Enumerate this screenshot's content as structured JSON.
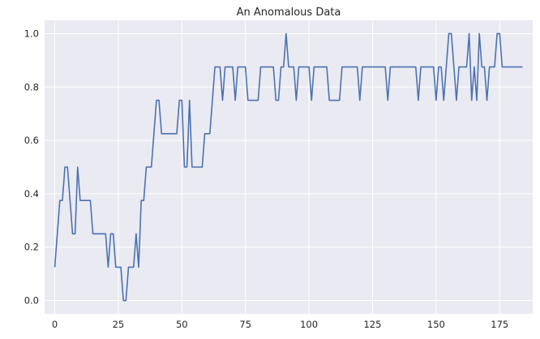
{
  "chart_data": {
    "type": "line",
    "title": "An Anomalous Data",
    "xlabel": "",
    "ylabel": "",
    "xlim": [
      -4,
      188
    ],
    "ylim": [
      -0.05,
      1.05
    ],
    "xticks": [
      0,
      25,
      50,
      75,
      100,
      125,
      150,
      175
    ],
    "yticks": [
      0.0,
      0.2,
      0.4,
      0.6,
      0.8,
      1.0
    ],
    "xtick_labels": [
      "0",
      "25",
      "50",
      "75",
      "100",
      "125",
      "150",
      "175"
    ],
    "ytick_labels": [
      "0.0",
      "0.2",
      "0.4",
      "0.6",
      "0.8",
      "1.0"
    ],
    "grid": true,
    "background": "#eaeaf2",
    "series": [
      {
        "color": "#4c72b0",
        "values": [
          0.125,
          0.25,
          0.375,
          0.375,
          0.5,
          0.5,
          0.375,
          0.25,
          0.25,
          0.5,
          0.375,
          0.375,
          0.375,
          0.375,
          0.375,
          0.25,
          0.25,
          0.25,
          0.25,
          0.25,
          0.25,
          0.125,
          0.25,
          0.25,
          0.125,
          0.125,
          0.125,
          0.0,
          0.0,
          0.125,
          0.125,
          0.125,
          0.25,
          0.125,
          0.375,
          0.375,
          0.5,
          0.5,
          0.5,
          0.625,
          0.75,
          0.75,
          0.625,
          0.625,
          0.625,
          0.625,
          0.625,
          0.625,
          0.625,
          0.75,
          0.75,
          0.5,
          0.5,
          0.75,
          0.5,
          0.5,
          0.5,
          0.5,
          0.5,
          0.625,
          0.625,
          0.625,
          0.75,
          0.875,
          0.875,
          0.875,
          0.75,
          0.875,
          0.875,
          0.875,
          0.875,
          0.75,
          0.875,
          0.875,
          0.875,
          0.875,
          0.75,
          0.75,
          0.75,
          0.75,
          0.75,
          0.875,
          0.875,
          0.875,
          0.875,
          0.875,
          0.875,
          0.75,
          0.75,
          0.875,
          0.875,
          1.0,
          0.875,
          0.875,
          0.875,
          0.75,
          0.875,
          0.875,
          0.875,
          0.875,
          0.875,
          0.75,
          0.875,
          0.875,
          0.875,
          0.875,
          0.875,
          0.875,
          0.75,
          0.75,
          0.75,
          0.75,
          0.75,
          0.875,
          0.875,
          0.875,
          0.875,
          0.875,
          0.875,
          0.875,
          0.75,
          0.875,
          0.875,
          0.875,
          0.875,
          0.875,
          0.875,
          0.875,
          0.875,
          0.875,
          0.875,
          0.75,
          0.875,
          0.875,
          0.875,
          0.875,
          0.875,
          0.875,
          0.875,
          0.875,
          0.875,
          0.875,
          0.875,
          0.75,
          0.875,
          0.875,
          0.875,
          0.875,
          0.875,
          0.875,
          0.75,
          0.875,
          0.875,
          0.75,
          0.875,
          1.0,
          1.0,
          0.875,
          0.75,
          0.875,
          0.875,
          0.875,
          0.875,
          1.0,
          0.75,
          0.875,
          0.75,
          1.0,
          0.875,
          0.875,
          0.75,
          0.875,
          0.875,
          0.875,
          1.0,
          1.0,
          0.875,
          0.875,
          0.875,
          0.875,
          0.875,
          0.875,
          0.875,
          0.875,
          0.875
        ]
      }
    ]
  }
}
